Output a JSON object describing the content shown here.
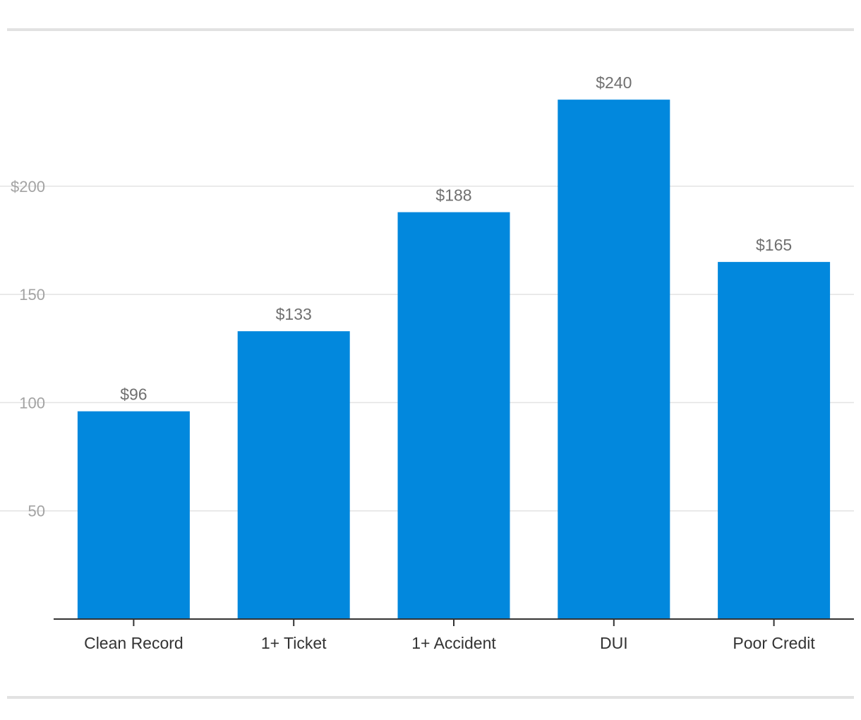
{
  "chart_data": {
    "type": "bar",
    "categories": [
      "Clean Record",
      "1+ Ticket",
      "1+ Accident",
      "DUI",
      "Poor Credit"
    ],
    "values": [
      96,
      133,
      188,
      240,
      165
    ],
    "data_labels": [
      "$96",
      "$133",
      "$188",
      "$240",
      "$165"
    ],
    "title": "",
    "xlabel": "",
    "ylabel": "",
    "ylim": [
      0,
      260
    ],
    "y_ticks": [
      50,
      100,
      150,
      200
    ],
    "y_tick_labels": [
      "50",
      "100",
      "150",
      "$200"
    ],
    "grid": true,
    "legend": "none",
    "colors": {
      "bar": "#0288dd",
      "grid": "#e3e3e3",
      "axis": "#333333",
      "rule": "#e2e2e2"
    }
  }
}
